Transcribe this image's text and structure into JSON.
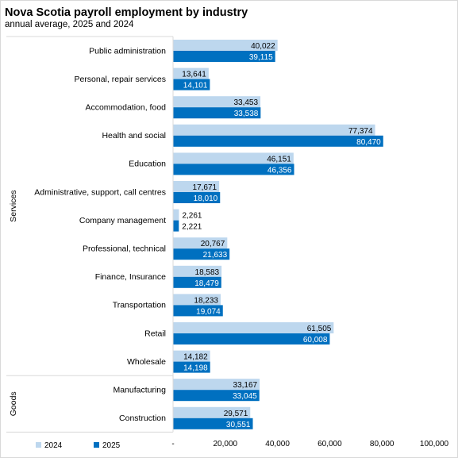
{
  "chart_data": {
    "type": "bar",
    "orientation": "horizontal",
    "title": "Nova Scotia payroll employment by industry",
    "subtitle": "annual average,  2025 and 2024",
    "categories": [
      "Public administration",
      "Personal, repair services",
      "Accommodation, food",
      "Health and social",
      "Education",
      "Administrative, support, call centres",
      "Company management",
      "Professional, technical",
      "Finance, Insurance",
      "Transportation",
      "Retail",
      "Wholesale",
      "Manufacturing",
      "Construction"
    ],
    "groups": [
      {
        "label": "Services",
        "count": 12
      },
      {
        "label": "Goods",
        "count": 2
      }
    ],
    "series": [
      {
        "name": "2024",
        "color": "#bdd7ee",
        "label_color": "#000000",
        "values": [
          40022,
          13641,
          33453,
          77374,
          46151,
          17671,
          2261,
          20767,
          18583,
          18233,
          61505,
          14182,
          33167,
          29571
        ],
        "labels": [
          "40,022",
          "13,641",
          "33,453",
          "77,374",
          "46,151",
          "17,671",
          "2,261",
          "20,767",
          "18,583",
          "18,233",
          "61,505",
          "14,182",
          "33,167",
          "29,571"
        ]
      },
      {
        "name": "2025",
        "color": "#0070c0",
        "label_color": "#ffffff",
        "values": [
          39115,
          14101,
          33538,
          80470,
          46356,
          18010,
          2221,
          21633,
          18479,
          19074,
          60008,
          14198,
          33045,
          30551
        ],
        "labels": [
          "39,115",
          "14,101",
          "33,538",
          "80,470",
          "46,356",
          "18,010",
          "2,221",
          "21,633",
          "18,479",
          "19,074",
          "60,008",
          "14,198",
          "33,045",
          "30,551"
        ]
      }
    ],
    "xlim": [
      0,
      100000
    ],
    "xticks": [
      0,
      20000,
      40000,
      60000,
      80000,
      100000
    ],
    "xtick_labels": [
      "-",
      "20,000",
      "40,000",
      "60,000",
      "80,000",
      "100,000"
    ],
    "grid": false,
    "legend_position": "bottom-left"
  }
}
